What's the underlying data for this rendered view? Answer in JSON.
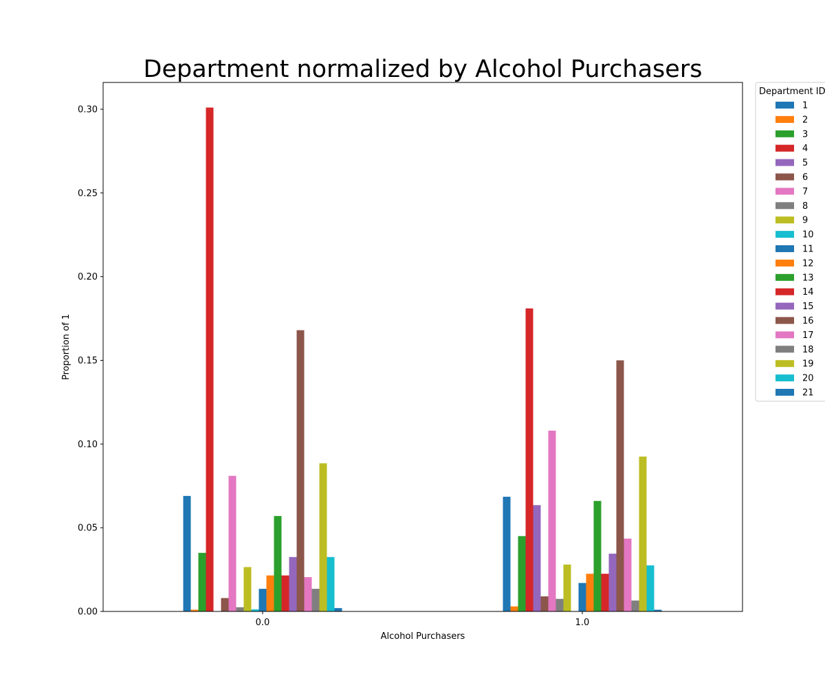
{
  "chart_data": {
    "type": "bar",
    "title": "Department normalized by Alcohol Purchasers",
    "xlabel": "Alcohol Purchasers",
    "ylabel": "Proportion of 1",
    "categories": [
      "0.0",
      "1.0"
    ],
    "ylim": [
      0,
      0.316
    ],
    "yticks": [
      "0.00",
      "0.05",
      "0.10",
      "0.15",
      "0.20",
      "0.25",
      "0.30"
    ],
    "grid": false,
    "legend": {
      "title": "Department ID",
      "placement": "outside-top-right"
    },
    "series": [
      {
        "name": "1",
        "color": "#1f77b4",
        "values": [
          0.069,
          0.0685
        ]
      },
      {
        "name": "2",
        "color": "#ff7f0e",
        "values": [
          0.001,
          0.003
        ]
      },
      {
        "name": "3",
        "color": "#2ca02c",
        "values": [
          0.035,
          0.045
        ]
      },
      {
        "name": "4",
        "color": "#d62728",
        "values": [
          0.301,
          0.181
        ]
      },
      {
        "name": "5",
        "color": "#9467bd",
        "values": [
          0.0,
          0.0635
        ]
      },
      {
        "name": "6",
        "color": "#8c564b",
        "values": [
          0.008,
          0.009
        ]
      },
      {
        "name": "7",
        "color": "#e377c2",
        "values": [
          0.081,
          0.108
        ]
      },
      {
        "name": "8",
        "color": "#7f7f7f",
        "values": [
          0.0025,
          0.0075
        ]
      },
      {
        "name": "9",
        "color": "#bcbd22",
        "values": [
          0.0265,
          0.028
        ]
      },
      {
        "name": "10",
        "color": "#17becf",
        "values": [
          0.0012,
          0.0
        ]
      },
      {
        "name": "11",
        "color": "#1f77b4",
        "values": [
          0.0135,
          0.017
        ]
      },
      {
        "name": "12",
        "color": "#ff7f0e",
        "values": [
          0.0215,
          0.0225
        ]
      },
      {
        "name": "13",
        "color": "#2ca02c",
        "values": [
          0.057,
          0.066
        ]
      },
      {
        "name": "14",
        "color": "#d62728",
        "values": [
          0.0215,
          0.0225
        ]
      },
      {
        "name": "15",
        "color": "#9467bd",
        "values": [
          0.0325,
          0.0345
        ]
      },
      {
        "name": "16",
        "color": "#8c564b",
        "values": [
          0.168,
          0.15
        ]
      },
      {
        "name": "17",
        "color": "#e377c2",
        "values": [
          0.0205,
          0.0435
        ]
      },
      {
        "name": "18",
        "color": "#7f7f7f",
        "values": [
          0.0135,
          0.0065
        ]
      },
      {
        "name": "19",
        "color": "#bcbd22",
        "values": [
          0.0885,
          0.0925
        ]
      },
      {
        "name": "20",
        "color": "#17becf",
        "values": [
          0.0325,
          0.0275
        ]
      },
      {
        "name": "21",
        "color": "#1f77b4",
        "values": [
          0.002,
          0.001
        ]
      }
    ]
  }
}
